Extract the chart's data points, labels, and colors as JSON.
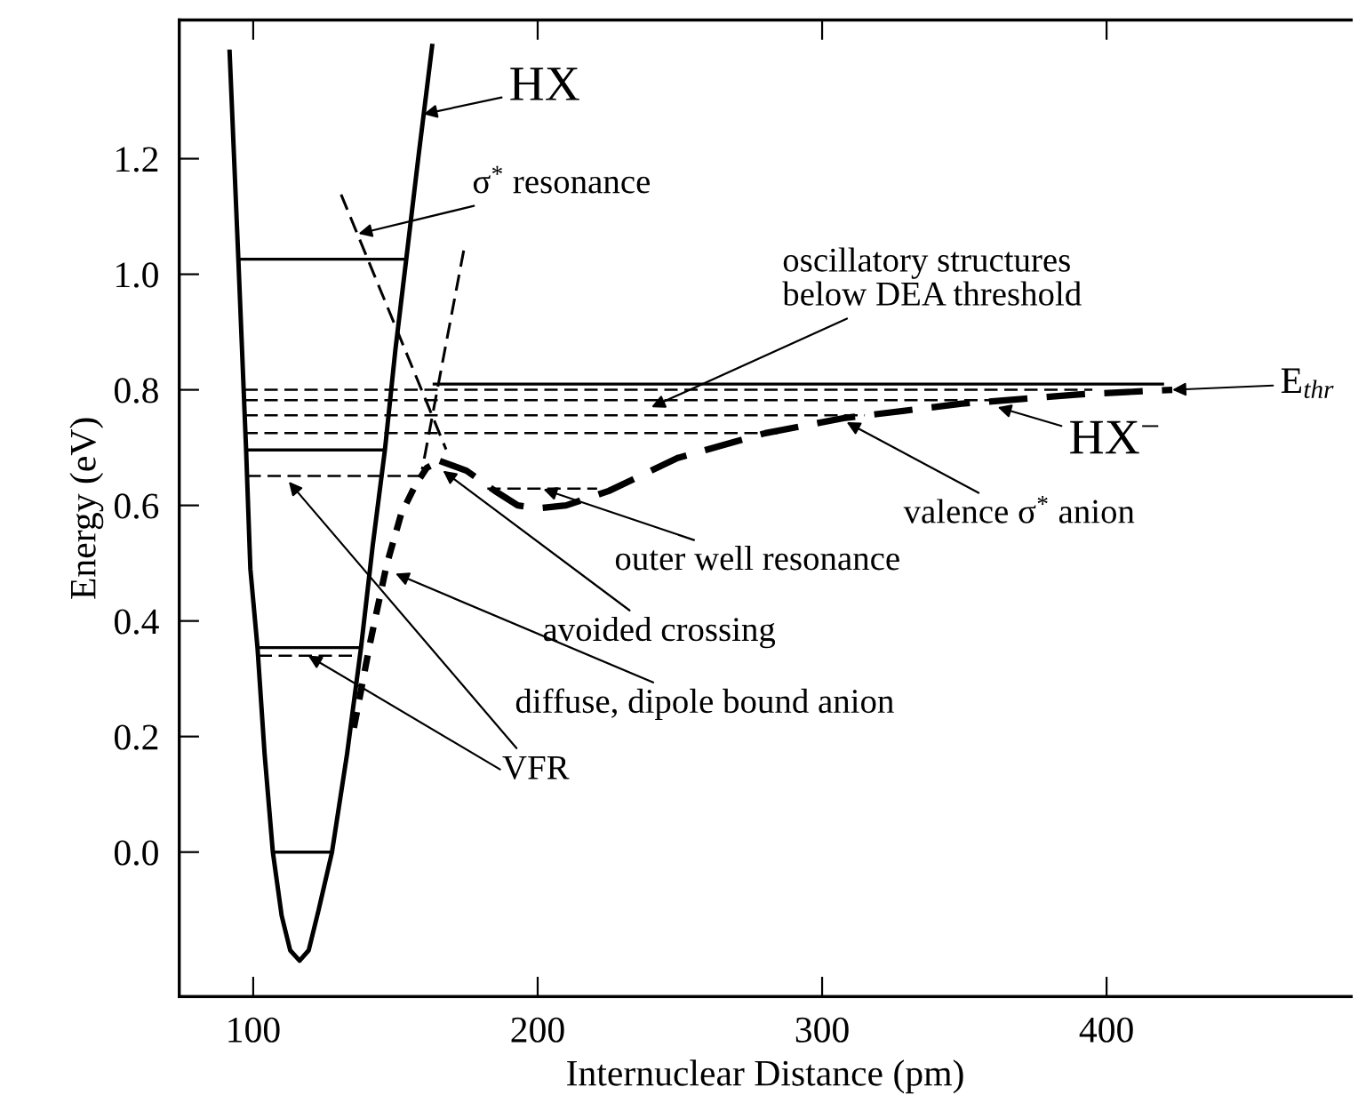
{
  "chart_data": {
    "type": "line",
    "xlabel": "Internuclear Distance (pm)",
    "ylabel": "Energy (eV)",
    "xlim": [
      74,
      486
    ],
    "ylim": [
      -0.25,
      1.44
    ],
    "xticks": [
      100,
      200,
      300,
      400
    ],
    "yticks": [
      {
        "value": 0.0,
        "label": "0.0"
      },
      0.2,
      0.4,
      0.6,
      0.8,
      {
        "value": 1.0,
        "label": "1.0"
      },
      1.2
    ],
    "grid": false,
    "marker": "none",
    "series": [
      {
        "color": "#000000",
        "line_style": "solid",
        "x": [
          91.7,
          94.8,
          97.5,
          99.0,
          101.5,
          104,
          106.9,
          110,
          113,
          116.3,
          119.5,
          123,
          127.7,
          133,
          137.9,
          142,
          146.3,
          150,
          153.8,
          158,
          162.9
        ],
        "values": [
          1.385,
          1.023,
          0.696,
          0.49,
          0.354,
          0.17,
          0.0,
          -0.11,
          -0.17,
          -0.188,
          -0.17,
          -0.1,
          0.0,
          0.17,
          0.354,
          0.53,
          0.696,
          0.87,
          1.026,
          1.2,
          1.395
        ]
      },
      {
        "color": "#000000",
        "line_style": "solid",
        "x": [
          106.9,
          127.7
        ],
        "values": [
          0.0,
          0.0
        ]
      },
      {
        "color": "#000000",
        "line_style": "solid",
        "x": [
          101.5,
          137.9
        ],
        "values": [
          0.354,
          0.354
        ]
      },
      {
        "color": "#000000",
        "line_style": "solid",
        "x": [
          97.5,
          146.3
        ],
        "values": [
          0.696,
          0.696
        ]
      },
      {
        "color": "#000000",
        "line_style": "solid",
        "x": [
          94.8,
          153.8
        ],
        "values": [
          1.026,
          1.026
        ]
      },
      {
        "color": "#000000",
        "line_style": "dashed",
        "x": [
          101.9,
          136.7
        ],
        "values": [
          0.34,
          0.34
        ]
      },
      {
        "color": "#000000",
        "line_style": "dashed",
        "x": [
          98,
          158.3
        ],
        "values": [
          0.651,
          0.651
        ]
      },
      {
        "color": "#000000",
        "line_style": "dashed",
        "x": [
          182.3,
          220.9
        ],
        "values": [
          0.629,
          0.629
        ]
      },
      {
        "color": "#000000",
        "line_style": "dashed",
        "x": [
          96.9,
          285
        ],
        "values": [
          0.725,
          0.725
        ]
      },
      {
        "color": "#000000",
        "line_style": "dashed",
        "x": [
          96.9,
          315
        ],
        "values": [
          0.756,
          0.756
        ]
      },
      {
        "color": "#000000",
        "line_style": "dashed",
        "x": [
          96.9,
          360
        ],
        "values": [
          0.782,
          0.782
        ]
      },
      {
        "color": "#000000",
        "line_style": "dashed",
        "x": [
          96.9,
          395
        ],
        "values": [
          0.8,
          0.8
        ]
      },
      {
        "color": "#000000",
        "line_style": "solid",
        "x": [
          163.6,
          419.7
        ],
        "values": [
          0.81,
          0.81
        ]
      },
      {
        "color": "#000000",
        "line_style": "dashed",
        "x": [
          130.9,
          167.8
        ],
        "values": [
          1.138,
          0.697
        ]
      },
      {
        "color": "#000000",
        "line_style": "dashed",
        "x": [
          174,
          159.4
        ],
        "values": [
          1.041,
          0.662
        ]
      },
      {
        "color": "#000000",
        "line_style": "dotted",
        "x": [
          135.4,
          141,
          146.9,
          152,
          157,
          161,
          165.6
        ],
        "values": [
          0.215,
          0.36,
          0.497,
          0.585,
          0.635,
          0.665,
          0.677
        ]
      },
      {
        "color": "#000000",
        "line_style": "dashed",
        "x": [
          165.6,
          175,
          185,
          193,
          200,
          210,
          225,
          249.2,
          280,
          307.5,
          349.2,
          390,
          423.1
        ],
        "values": [
          0.677,
          0.66,
          0.625,
          0.6,
          0.595,
          0.6,
          0.625,
          0.682,
          0.725,
          0.751,
          0.776,
          0.792,
          0.8
        ]
      }
    ],
    "annotations": [
      {
        "text": "HX",
        "x": 159.9,
        "y": 1.277
      },
      {
        "text": "σ$^{*}$ resonance",
        "x": 137,
        "y": 1.07
      },
      {
        "text": "oscillatory structures\nbelow DEA threshold",
        "x": 240,
        "y": 0.77
      },
      {
        "text": "E$_{thr}$",
        "x": 423.1,
        "y": 0.8
      },
      {
        "text": "HX$^{−}$",
        "x": 361.7,
        "y": 0.77
      },
      {
        "text": "valence σ$^{*}$ anion",
        "x": 308.6,
        "y": 0.744
      },
      {
        "text": "outer well resonance",
        "x": 202,
        "y": 0.628
      },
      {
        "text": "avoided crossing",
        "x": 166.7,
        "y": 0.66
      },
      {
        "text": "diffuse, dipole bound anion",
        "x": 150,
        "y": 0.482
      },
      {
        "text": "VFR",
        "x": 112.5,
        "y": 0.641
      }
    ]
  }
}
